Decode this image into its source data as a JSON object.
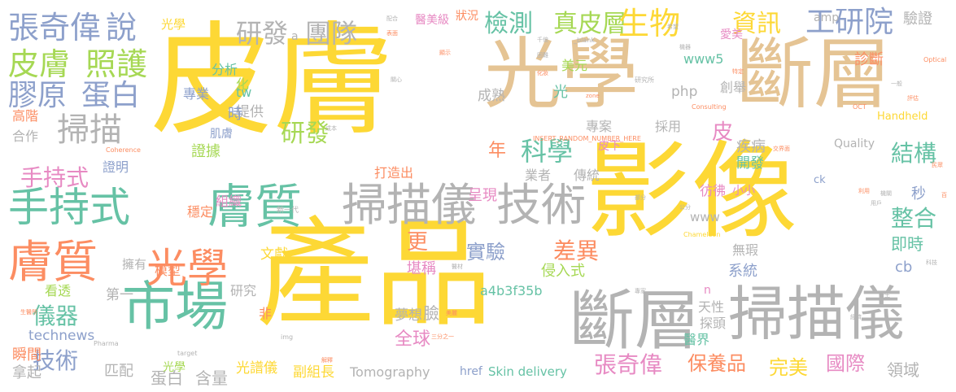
{
  "palette": {
    "yellow": "#fdd835",
    "tan": "#e5c494",
    "gray": "#b3b3b3",
    "teal": "#66c2a5",
    "orange": "#fc8d62",
    "blue": "#8da0cb",
    "pink": "#e78ac3",
    "green": "#a6d854"
  },
  "words": [
    {
      "text": "皮膚",
      "color": "yellow"
    },
    {
      "text": "影像",
      "color": "yellow"
    },
    {
      "text": "產品",
      "color": "yellow"
    },
    {
      "text": "光學",
      "color": "tan"
    },
    {
      "text": "斷層",
      "color": "tan"
    },
    {
      "text": "斷層",
      "color": "gray"
    },
    {
      "text": "掃描儀",
      "color": "gray"
    },
    {
      "text": "掃描儀",
      "color": "gray"
    },
    {
      "text": "技術",
      "color": "gray"
    },
    {
      "text": "手持式",
      "color": "teal"
    },
    {
      "text": "膚質",
      "color": "teal"
    },
    {
      "text": "市場",
      "color": "teal"
    },
    {
      "text": "膚質",
      "color": "orange"
    },
    {
      "text": "光學",
      "color": "orange"
    },
    {
      "text": "張奇偉",
      "color": "blue"
    },
    {
      "text": "說",
      "color": "blue"
    },
    {
      "text": "皮膚",
      "color": "green"
    },
    {
      "text": "照護",
      "color": "green"
    },
    {
      "text": "膠原",
      "color": "blue"
    },
    {
      "text": "蛋白",
      "color": "blue"
    },
    {
      "text": "掃描",
      "color": "gray"
    },
    {
      "text": "研發",
      "color": "gray"
    },
    {
      "text": "團隊",
      "color": "gray"
    },
    {
      "text": "檢測",
      "color": "teal"
    },
    {
      "text": "真皮層",
      "color": "green"
    },
    {
      "text": "生物",
      "color": "yellow"
    },
    {
      "text": "資訊",
      "color": "yellow"
    },
    {
      "text": "工研院",
      "color": "blue"
    },
    {
      "text": "科學",
      "color": "teal"
    },
    {
      "text": "研發",
      "color": "green"
    },
    {
      "text": "手持式",
      "color": "pink"
    },
    {
      "text": "結構",
      "color": "teal"
    },
    {
      "text": "整合",
      "color": "teal"
    },
    {
      "text": "差異",
      "color": "orange"
    },
    {
      "text": "實驗",
      "color": "blue"
    },
    {
      "text": "儀器",
      "color": "teal"
    },
    {
      "text": "技術",
      "color": "blue"
    },
    {
      "text": "張奇偉",
      "color": "pink"
    },
    {
      "text": "保養品",
      "color": "orange"
    },
    {
      "text": "完美",
      "color": "yellow"
    },
    {
      "text": "國際",
      "color": "pink"
    },
    {
      "text": "領域",
      "color": "gray"
    },
    {
      "text": "technews",
      "color": "blue"
    },
    {
      "text": "Tomography",
      "color": "gray"
    },
    {
      "text": "Skin delivery",
      "color": "teal"
    },
    {
      "text": "光譜儀",
      "color": "yellow"
    },
    {
      "text": "副組長",
      "color": "yellow"
    },
    {
      "text": "蛋白",
      "color": "gray"
    },
    {
      "text": "含量",
      "color": "gray"
    },
    {
      "text": "年",
      "color": "orange"
    },
    {
      "text": "皮",
      "color": "pink"
    },
    {
      "text": "更",
      "color": "orange"
    },
    {
      "text": "堪稱",
      "color": "pink"
    },
    {
      "text": "全球",
      "color": "pink"
    },
    {
      "text": "夢想",
      "color": "gray"
    },
    {
      "text": "a4b3f35b",
      "color": "teal"
    },
    {
      "text": "侵入式",
      "color": "green"
    },
    {
      "text": "系統",
      "color": "blue"
    },
    {
      "text": "即時",
      "color": "teal"
    },
    {
      "text": "秒",
      "color": "blue"
    },
    {
      "text": "cb",
      "color": "blue"
    },
    {
      "text": "驗證",
      "color": "gray"
    },
    {
      "text": "診斷",
      "color": "orange"
    },
    {
      "text": "amp",
      "color": "gray"
    },
    {
      "text": "www5",
      "color": "teal"
    },
    {
      "text": "php",
      "color": "gray"
    },
    {
      "text": "創舉",
      "color": "gray"
    },
    {
      "text": "美元",
      "color": "green"
    },
    {
      "text": "分析",
      "color": "teal"
    },
    {
      "text": "專業",
      "color": "blue"
    },
    {
      "text": "化",
      "color": "green"
    },
    {
      "text": "tw",
      "color": "teal"
    },
    {
      "text": "光",
      "color": "teal"
    },
    {
      "text": "提供",
      "color": "gray"
    },
    {
      "text": "成熟",
      "color": "gray"
    },
    {
      "text": "時",
      "color": "blue"
    },
    {
      "text": "高階",
      "color": "orange"
    },
    {
      "text": "合作",
      "color": "gray"
    },
    {
      "text": "證據",
      "color": "green"
    },
    {
      "text": "肌膚",
      "color": "blue"
    },
    {
      "text": "專案",
      "color": "gray"
    },
    {
      "text": "採用",
      "color": "gray"
    },
    {
      "text": "疾病",
      "color": "gray"
    },
    {
      "text": "打造出",
      "color": "orange"
    },
    {
      "text": "呈現",
      "color": "pink"
    },
    {
      "text": "業者",
      "color": "gray"
    },
    {
      "text": "傳統",
      "color": "gray"
    },
    {
      "text": "開發",
      "color": "teal"
    },
    {
      "text": "證明",
      "color": "blue"
    },
    {
      "text": "組織",
      "color": "pink"
    },
    {
      "text": "穩定",
      "color": "orange"
    },
    {
      "text": "彷彿",
      "color": "pink"
    },
    {
      "text": "小小",
      "color": "pink"
    },
    {
      "text": "文獻",
      "color": "yellow"
    },
    {
      "text": "無瑕",
      "color": "gray"
    },
    {
      "text": "第一",
      "color": "gray"
    },
    {
      "text": "模型",
      "color": "orange"
    },
    {
      "text": "研究",
      "color": "gray"
    },
    {
      "text": "看透",
      "color": "green"
    },
    {
      "text": "擁有",
      "color": "gray"
    },
    {
      "text": "非",
      "color": "orange"
    },
    {
      "text": "臉",
      "color": "gray"
    },
    {
      "text": "探頭",
      "color": "gray"
    },
    {
      "text": "醫界",
      "color": "teal"
    },
    {
      "text": "天性",
      "color": "gray"
    },
    {
      "text": "瞬間",
      "color": "orange"
    },
    {
      "text": "拿起",
      "color": "gray"
    },
    {
      "text": "匹配",
      "color": "gray"
    },
    {
      "text": "光學",
      "color": "yellow"
    },
    {
      "text": "href",
      "color": "blue"
    },
    {
      "text": "醫美級",
      "color": "pink"
    },
    {
      "text": "狀況",
      "color": "orange"
    },
    {
      "text": "光學",
      "color": "green"
    },
    {
      "text": "Quality",
      "color": "gray"
    },
    {
      "text": "Handheld",
      "color": "yellow"
    },
    {
      "text": "ck",
      "color": "blue"
    },
    {
      "text": "n",
      "color": "pink"
    },
    {
      "text": "www",
      "color": "gray"
    },
    {
      "text": "皮下",
      "color": "pink"
    },
    {
      "text": "a",
      "color": "gray"
    },
    {
      "text": "愛美",
      "color": "pink"
    },
    {
      "text": "INSERT_RANDOM_NUMBER_HERE",
      "color": "orange"
    },
    {
      "text": "Consulting",
      "color": "orange"
    },
    {
      "text": "Coherence",
      "color": "orange"
    },
    {
      "text": "OCT",
      "color": "orange"
    },
    {
      "text": "Optical",
      "color": "orange"
    },
    {
      "text": "Chameleon",
      "color": "yellow"
    },
    {
      "text": "_blank",
      "color": "gray"
    },
    {
      "text": "target",
      "color": "gray"
    },
    {
      "text": "Pharma",
      "color": "gray"
    },
    {
      "text": "img",
      "color": "gray"
    },
    {
      "text": "zone",
      "color": "orange"
    },
    {
      "text": "新一代",
      "color": "gray"
    },
    {
      "text": "生醫所",
      "color": "orange"
    },
    {
      "text": "三分之一",
      "color": "orange"
    },
    {
      "text": "研究所",
      "color": "gray"
    },
    {
      "text": "交界面",
      "color": "orange"
    },
    {
      "text": "民眾",
      "color": "orange"
    },
    {
      "text": "科技",
      "color": "gray"
    },
    {
      "text": "機器",
      "color": "gray"
    },
    {
      "text": "解釋",
      "color": "orange"
    },
    {
      "text": "困難",
      "color": "gray"
    },
    {
      "text": "關心",
      "color": "gray"
    },
    {
      "text": "醫材",
      "color": "gray"
    },
    {
      "text": "美麗",
      "color": "orange"
    },
    {
      "text": "專家",
      "color": "gray"
    },
    {
      "text": "評估",
      "color": "orange"
    },
    {
      "text": "公分",
      "color": "gray"
    },
    {
      "text": "用戶",
      "color": "gray"
    },
    {
      "text": "經濟",
      "color": "gray"
    },
    {
      "text": "化妝",
      "color": "orange"
    },
    {
      "text": "顯示",
      "color": "orange"
    },
    {
      "text": "機關",
      "color": "gray"
    },
    {
      "text": "醫生",
      "color": "gray"
    },
    {
      "text": "配合",
      "color": "gray"
    },
    {
      "text": "成本",
      "color": "gray"
    },
    {
      "text": "利用",
      "color": "orange"
    },
    {
      "text": "百",
      "color": "orange"
    },
    {
      "text": "希望",
      "color": "gray"
    },
    {
      "text": "千億",
      "color": "gray"
    },
    {
      "text": "表面",
      "color": "orange"
    },
    {
      "text": "部分",
      "color": "gray"
    },
    {
      "text": "特定",
      "color": "orange"
    },
    {
      "text": "一般",
      "color": "gray"
    }
  ]
}
